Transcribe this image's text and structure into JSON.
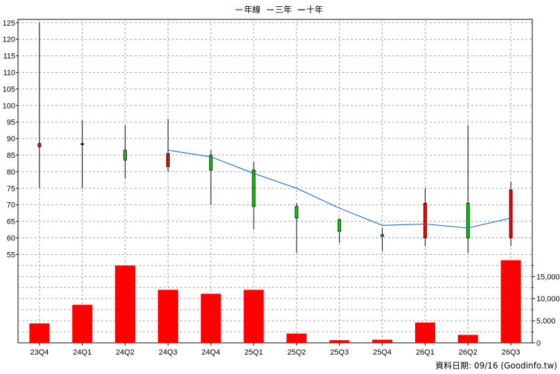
{
  "legend": [
    {
      "label": "年線",
      "color": "#1f6fd0"
    },
    {
      "label": "三年",
      "color": "#e02020"
    },
    {
      "label": "十年",
      "color": "#8b0000"
    }
  ],
  "footer": "資料日期: 09/16  (Goodinfo.tw)",
  "chart_data": {
    "type": "candlestick+bar+line",
    "categories": [
      "23Q4",
      "24Q1",
      "24Q2",
      "24Q3",
      "24Q4",
      "25Q1",
      "25Q2",
      "25Q3",
      "25Q4",
      "26Q1",
      "26Q2",
      "26Q3"
    ],
    "price_axis": {
      "ylim": [
        53,
        126
      ],
      "ticks": [
        55,
        60,
        65,
        70,
        75,
        80,
        85,
        90,
        95,
        100,
        105,
        110,
        115,
        120,
        125
      ]
    },
    "volume_axis": {
      "ylim": [
        0,
        18500
      ],
      "ticks": [
        0,
        5000,
        10000,
        15000
      ],
      "tick_labels": [
        "0",
        "5,000",
        "10,000",
        "15,000"
      ]
    },
    "candles": [
      {
        "open": 88.5,
        "close": 87.5,
        "high": 125,
        "low": 75,
        "color": "red"
      },
      {
        "open": 88.5,
        "close": 88.2,
        "high": 95.5,
        "low": 75,
        "color": "black"
      },
      {
        "open": 83.5,
        "close": 86.5,
        "high": 94,
        "low": 78,
        "color": "green"
      },
      {
        "open": 85.5,
        "close": 81.5,
        "high": 96,
        "low": 80,
        "color": "red"
      },
      {
        "open": 80.5,
        "close": 85,
        "high": 86.5,
        "low": 70,
        "color": "green"
      },
      {
        "open": 69.5,
        "close": 80.5,
        "high": 83,
        "low": 62.5,
        "color": "green"
      },
      {
        "open": 66,
        "close": 69.5,
        "high": 70.5,
        "low": 55.5,
        "color": "green"
      },
      {
        "open": 62,
        "close": 65.5,
        "high": 66,
        "low": 58.5,
        "color": "green"
      },
      {
        "open": 60.5,
        "close": 61,
        "high": 63,
        "low": 56,
        "color": "green"
      },
      {
        "open": 70.5,
        "close": 60,
        "high": 75,
        "low": 57.5,
        "color": "red"
      },
      {
        "open": 60,
        "close": 70.5,
        "high": 94,
        "low": 55.5,
        "color": "green"
      },
      {
        "open": 74.5,
        "close": 60,
        "high": 77,
        "low": 57.5,
        "color": "red"
      }
    ],
    "annual_line": [
      null,
      null,
      null,
      86.5,
      84.5,
      79.5,
      75,
      69,
      63.8,
      64.2,
      63,
      66
    ],
    "volume": [
      4400,
      8600,
      17500,
      12000,
      11100,
      12000,
      2100,
      600,
      700,
      4600,
      1800,
      18700
    ]
  }
}
